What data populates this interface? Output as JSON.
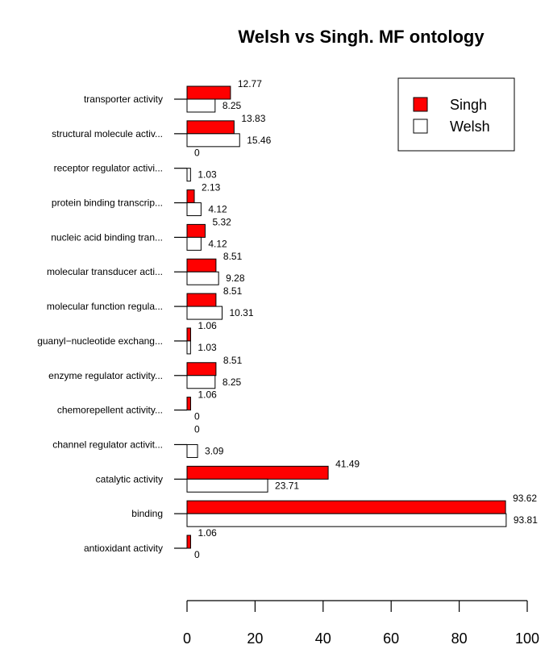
{
  "chart_data": {
    "type": "bar",
    "orientation": "horizontal",
    "title": "Welsh vs Singh. MF ontology",
    "xlabel": "",
    "ylabel": "",
    "xlim": [
      0,
      100
    ],
    "xticks": [
      0,
      20,
      40,
      60,
      80,
      100
    ],
    "grid": false,
    "legend_position": "top-right",
    "categories": [
      "transporter activity",
      "structural molecule activ...",
      "receptor regulator activi...",
      "protein binding transcrip...",
      "nucleic acid binding tran...",
      "molecular transducer acti...",
      "molecular function regula...",
      "guanyl−nucleotide exchang...",
      "enzyme regulator activity...",
      "chemorepellent activity...",
      "channel regulator activit...",
      "catalytic activity",
      "binding",
      "antioxidant activity"
    ],
    "series": [
      {
        "name": "Singh",
        "color": "#ff0000",
        "values": [
          12.77,
          13.83,
          0,
          2.13,
          5.32,
          8.51,
          8.51,
          1.06,
          8.51,
          1.06,
          0,
          41.49,
          93.62,
          1.06
        ],
        "labels": [
          "12.77",
          "13.83",
          "0",
          "2.13",
          "5.32",
          "8.51",
          "8.51",
          "1.06",
          "8.51",
          "1.06",
          "0",
          "41.49",
          "93.62",
          "1.06"
        ]
      },
      {
        "name": "Welsh",
        "color": "#ffffff",
        "values": [
          8.25,
          15.46,
          1.03,
          4.12,
          4.12,
          9.28,
          10.31,
          1.03,
          8.25,
          0,
          3.09,
          23.71,
          93.81,
          0
        ],
        "labels": [
          "8.25",
          "15.46",
          "1.03",
          "4.12",
          "4.12",
          "9.28",
          "10.31",
          "1.03",
          "8.25",
          "0",
          "3.09",
          "23.71",
          "93.81",
          "0"
        ]
      }
    ]
  }
}
